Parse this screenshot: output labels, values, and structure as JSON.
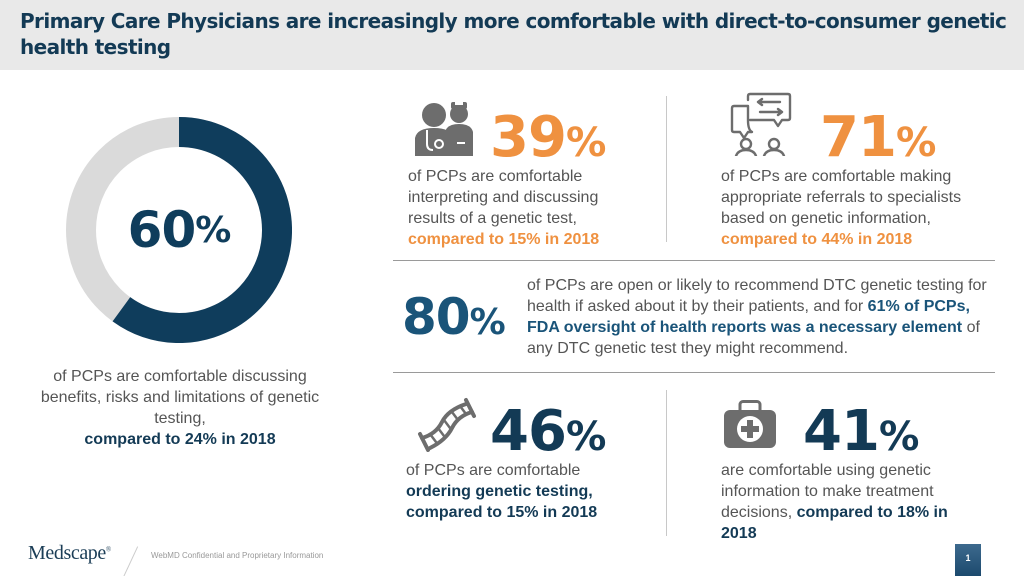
{
  "header": {
    "title": "Primary Care Physicians are increasingly more comfortable with direct-to-consumer genetic health testing"
  },
  "donut": {
    "value": "60",
    "percent_sign": "%",
    "fraction": 0.6,
    "colors": {
      "filled": "#0f3d5c",
      "remainder": "#dadada"
    },
    "caption_plain": "of PCPs are comfortable discussing benefits, risks and limitations of genetic testing,",
    "caption_bold": "compared to 24% in 2018"
  },
  "stats": {
    "interpret": {
      "icon": "doctor-nurse-icon",
      "value": "39",
      "percent_sign": "%",
      "caption_plain": "of PCPs are comfortable interpreting and discussing results of a genetic test,",
      "caption_bold": "compared to 15% in 2018"
    },
    "referrals": {
      "icon": "consultation-chat-icon",
      "value": "71",
      "percent_sign": "%",
      "caption_plain": "of PCPs are comfortable making appropriate referrals to specialists based on genetic information,",
      "caption_bold": "compared to 44% in 2018"
    },
    "dtc": {
      "value": "80",
      "percent_sign": "%",
      "caption_part1": "of PCPs are open or likely to recommend DTC genetic testing for health if asked about it by their patients, and for",
      "caption_bold": "61% of PCPs, FDA oversight of health reports was a necessary element",
      "caption_part2": "of any DTC genetic test they might recommend."
    },
    "ordering": {
      "icon": "dna-icon",
      "value": "46",
      "percent_sign": "%",
      "caption_plain": "of PCPs are comfortable",
      "caption_bold1": "ordering genetic testing,",
      "caption_bold2": "compared to 15% in 2018"
    },
    "treatment": {
      "icon": "medical-kit-icon",
      "value": "41",
      "percent_sign": "%",
      "caption_plain": "are comfortable using genetic information to make treatment decisions,",
      "caption_bold": "compared to 18% in 2018"
    }
  },
  "colors": {
    "navy": "#133a55",
    "orange": "#ef9140",
    "blue": "#1a5479",
    "gray_text": "#555555",
    "icon_gray": "#6d6d6d"
  },
  "footer": {
    "logo": "Medscape",
    "logo_mark": "®",
    "confidential": "WebMD Confidential and Proprietary Information",
    "page_number": "1"
  }
}
